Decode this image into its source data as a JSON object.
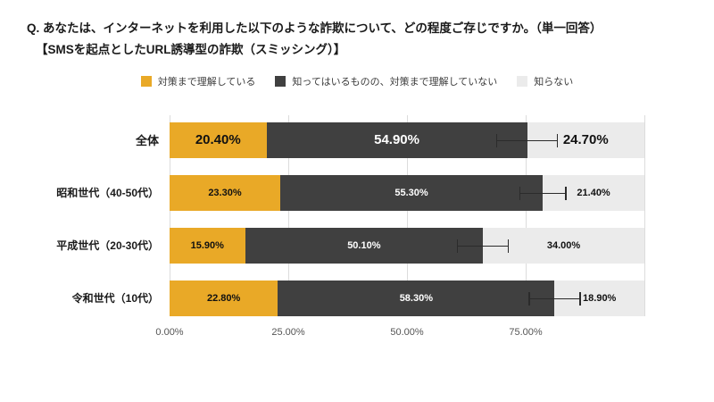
{
  "title": {
    "line1": "Q. あなたは、インターネットを利用した以下のような詐欺について、どの程度ご存じですか。（単一回答）",
    "line2": "【SMSを起点としたURL誘導型の詐欺（スミッシング）】"
  },
  "chart_data": {
    "type": "bar",
    "orientation": "horizontal",
    "stacked": true,
    "legend_position": "top",
    "grid": true,
    "xlim": [
      0,
      100
    ],
    "x_ticks": [
      "0.00%",
      "25.00%",
      "50.00%",
      "75.00%"
    ],
    "x_tick_values": [
      0,
      25,
      50,
      75
    ],
    "categories": [
      "全体",
      "昭和世代（40-50代）",
      "平成世代（20-30代）",
      "令和世代（10代）"
    ],
    "series": [
      {
        "name": "対策まで理解している",
        "color": "#E9A927",
        "values": [
          20.4,
          23.3,
          15.9,
          22.8
        ]
      },
      {
        "name": "知ってはいるものの、対策まで理解していない",
        "color": "#404040",
        "values": [
          54.9,
          55.3,
          50.1,
          58.3
        ]
      },
      {
        "name": "知らない",
        "color": "#EBEBEB",
        "values": [
          24.7,
          21.4,
          34.0,
          18.9
        ]
      }
    ],
    "value_labels": [
      [
        "20.40%",
        "54.90%",
        "24.70%"
      ],
      [
        "23.30%",
        "55.30%",
        "21.40%"
      ],
      [
        "15.90%",
        "50.10%",
        "34.00%"
      ],
      [
        "22.80%",
        "58.30%",
        "18.90%"
      ]
    ],
    "error_margins": [
      6.5,
      5.0,
      5.5,
      5.5
    ]
  }
}
